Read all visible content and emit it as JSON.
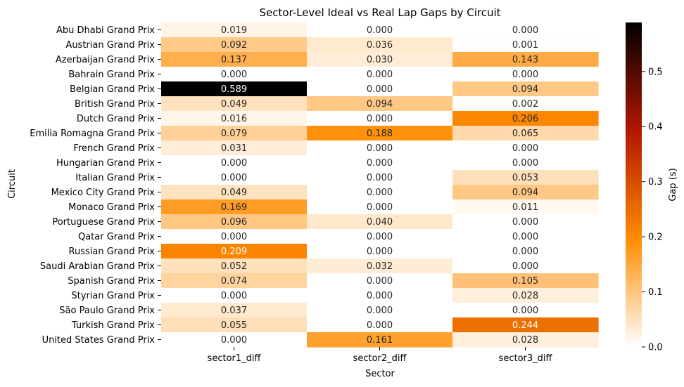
{
  "chart_data": {
    "type": "heatmap",
    "title": "Sector-Level Ideal vs Real Lap Gaps by Circuit",
    "xlabel": "Sector",
    "ylabel": "Circuit",
    "colorbar_label": "Gap (s)",
    "colormap": "gist_heat_r",
    "colormap_stops": [
      "#ffffff",
      "#ff8c00",
      "#b21700",
      "#000000"
    ],
    "value_range": [
      0,
      0.589
    ],
    "colorbar_ticks": [
      "0.0",
      "0.1",
      "0.2",
      "0.3",
      "0.4",
      "0.5"
    ],
    "colorbar_tick_values": [
      0.0,
      0.1,
      0.2,
      0.3,
      0.4,
      0.5
    ],
    "columns": [
      "sector1_diff",
      "sector2_diff",
      "sector3_diff"
    ],
    "rows": [
      "Abu Dhabi Grand Prix",
      "Austrian Grand Prix",
      "Azerbaijan Grand Prix",
      "Bahrain Grand Prix",
      "Belgian Grand Prix",
      "British Grand Prix",
      "Dutch Grand Prix",
      "Emilia Romagna Grand Prix",
      "French Grand Prix",
      "Hungarian Grand Prix",
      "Italian Grand Prix",
      "Mexico City Grand Prix",
      "Monaco Grand Prix",
      "Portuguese Grand Prix",
      "Qatar Grand Prix",
      "Russian Grand Prix",
      "Saudi Arabian Grand Prix",
      "Spanish Grand Prix",
      "Styrian Grand Prix",
      "São Paulo Grand Prix",
      "Turkish Grand Prix",
      "United States Grand Prix"
    ],
    "values": [
      [
        0.019,
        0.0,
        0.0
      ],
      [
        0.092,
        0.036,
        0.001
      ],
      [
        0.137,
        0.03,
        0.143
      ],
      [
        0.0,
        0.0,
        0.0
      ],
      [
        0.589,
        0.0,
        0.094
      ],
      [
        0.049,
        0.094,
        0.002
      ],
      [
        0.016,
        0.0,
        0.206
      ],
      [
        0.079,
        0.188,
        0.065
      ],
      [
        0.031,
        0.0,
        0.0
      ],
      [
        0.0,
        0.0,
        0.0
      ],
      [
        0.0,
        0.0,
        0.053
      ],
      [
        0.049,
        0.0,
        0.094
      ],
      [
        0.169,
        0.0,
        0.011
      ],
      [
        0.096,
        0.04,
        0.0
      ],
      [
        0.0,
        0.0,
        0.0
      ],
      [
        0.209,
        0.0,
        0.0
      ],
      [
        0.052,
        0.032,
        0.0
      ],
      [
        0.074,
        0.0,
        0.105
      ],
      [
        0.0,
        0.0,
        0.028
      ],
      [
        0.037,
        0.0,
        0.0
      ],
      [
        0.055,
        0.0,
        0.244
      ],
      [
        0.0,
        0.161,
        0.028
      ]
    ]
  }
}
